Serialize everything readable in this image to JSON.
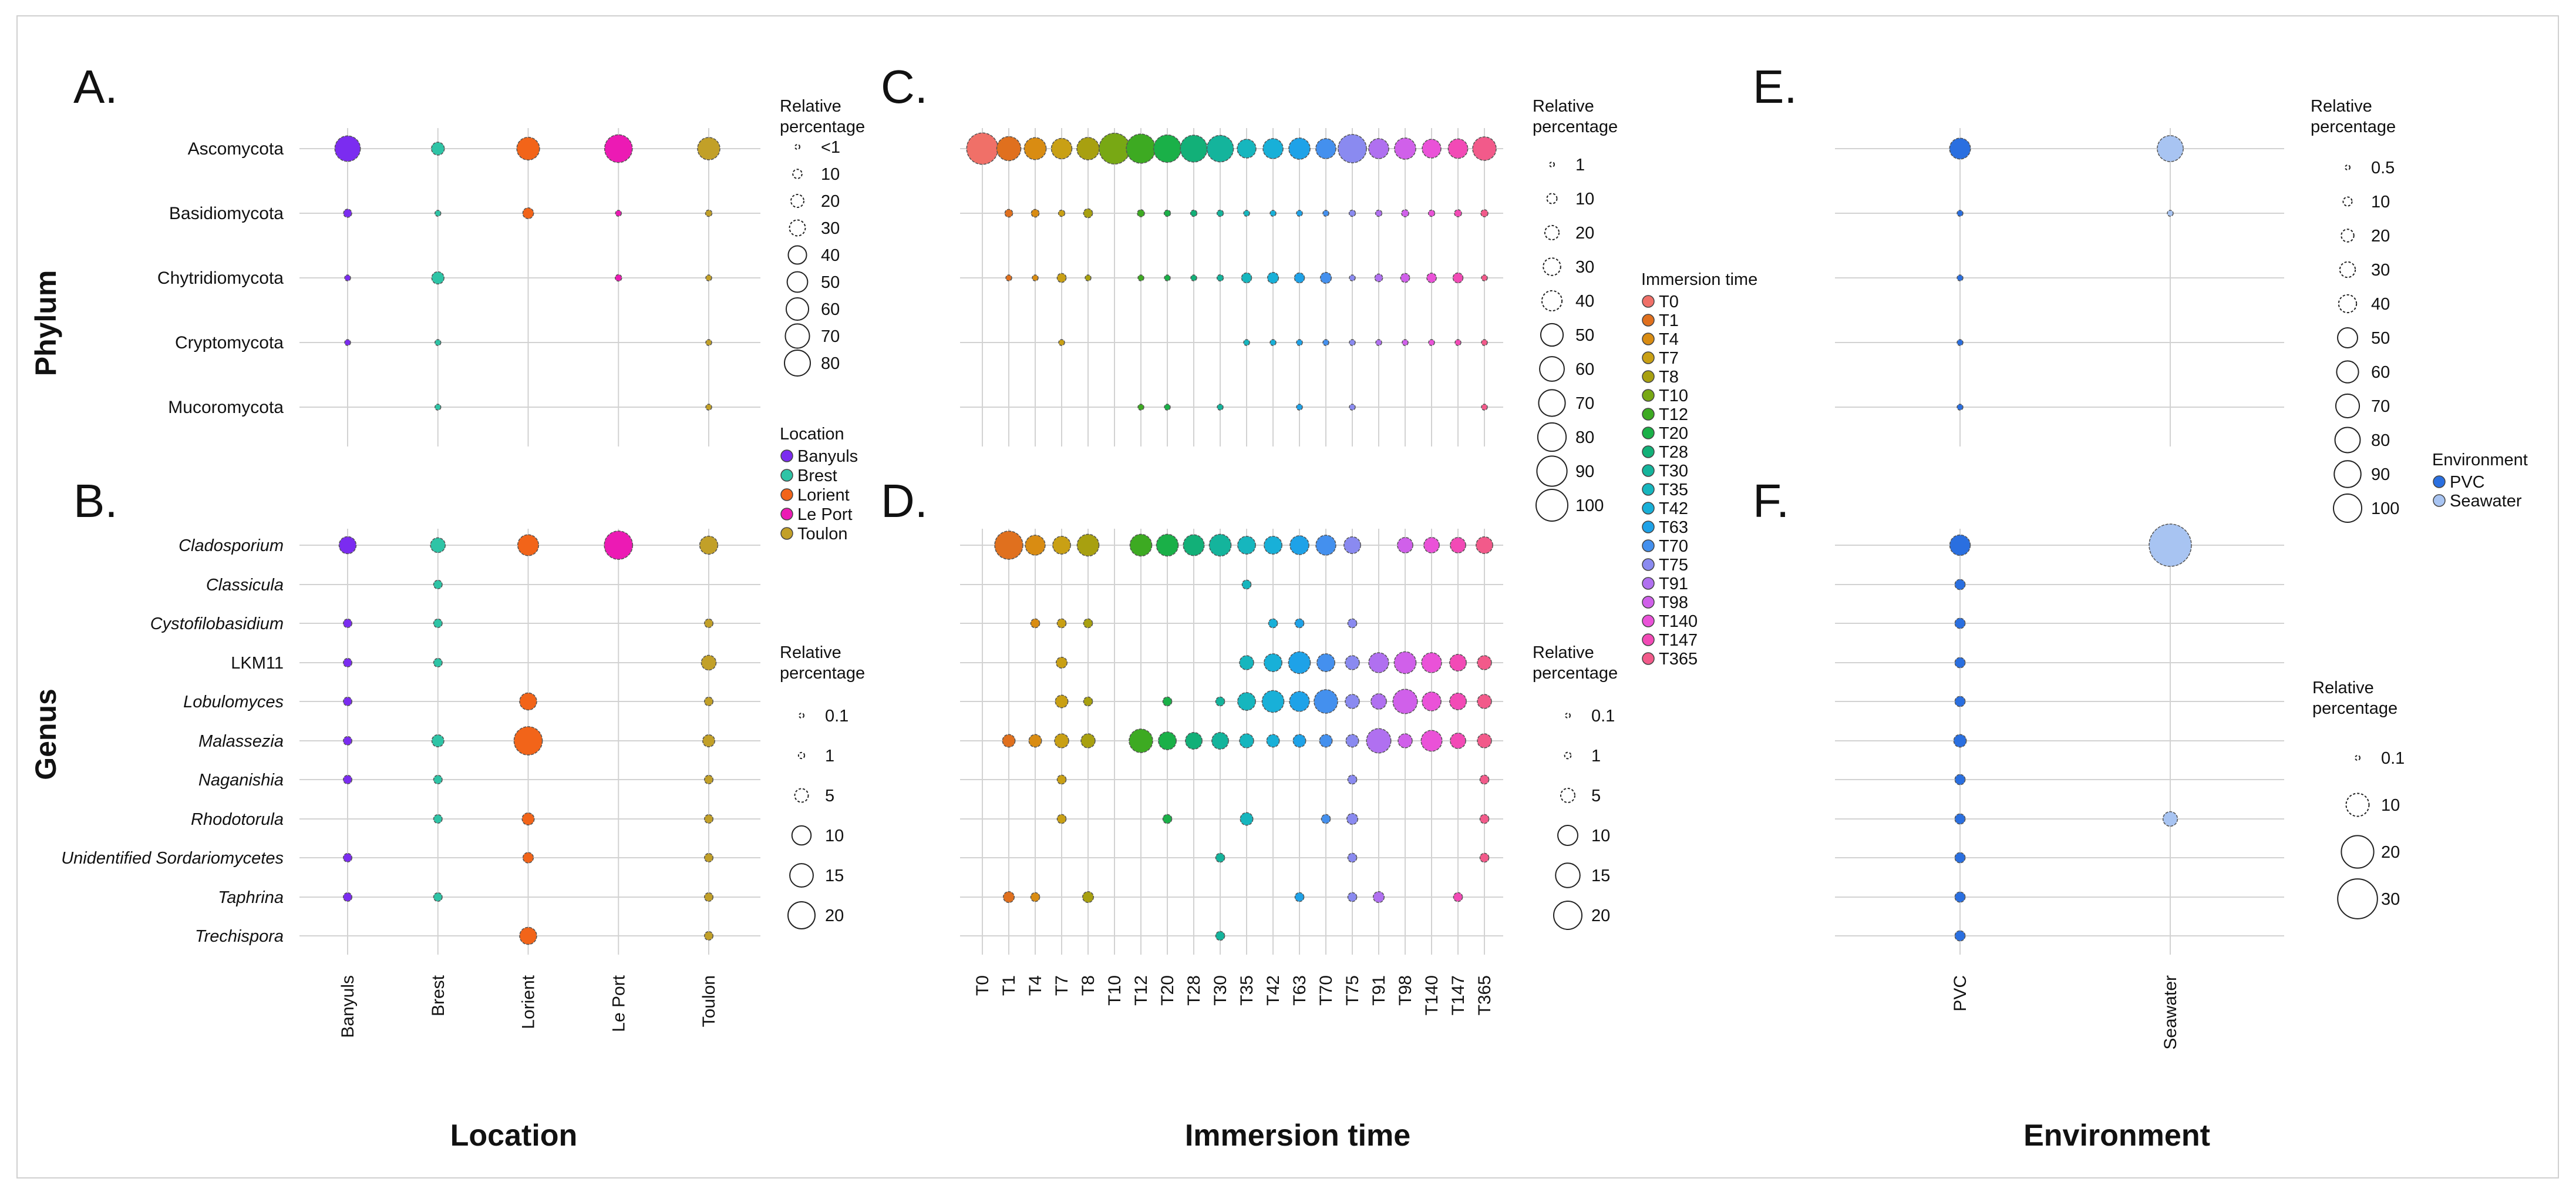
{
  "figure": {
    "side_labels": {
      "phylum": "Phylum",
      "genus": "Genus"
    },
    "bottom_titles": {
      "location": "Location",
      "immersion": "Immersion time",
      "environment": "Environment"
    },
    "panel_letters": {
      "A": "A.",
      "B": "B.",
      "C": "C.",
      "D": "D.",
      "E": "E.",
      "F": "F."
    },
    "size_legend_title": [
      "Relative",
      "percentage"
    ],
    "color_legend_titles": {
      "location": "Location",
      "immersion": "Immersion time",
      "environment": "Environment"
    }
  },
  "chart_data": [
    {
      "panel": "A",
      "type": "scatter",
      "title": "A.",
      "xlabel": "Location",
      "ylabel": "Phylum",
      "categories": [
        "Banyuls",
        "Brest",
        "Lorient",
        "Le Port",
        "Toulon"
      ],
      "rows": [
        "Ascomycota",
        "Basidiomycota",
        "Chytridiomycota",
        "Cryptomycota",
        "Mucoromycota"
      ],
      "values": [
        [
          78,
          20,
          62,
          92,
          60
        ],
        [
          8,
          4,
          14,
          2,
          5
        ],
        [
          3,
          18,
          0,
          5,
          3
        ],
        [
          2,
          2,
          0,
          0,
          2
        ],
        [
          0,
          1,
          0,
          0,
          1
        ]
      ],
      "size_legend": {
        "labels": [
          "<1",
          "10",
          "20",
          "30",
          "40",
          "50",
          "60",
          "70",
          "80"
        ],
        "values": [
          1,
          10,
          20,
          30,
          40,
          50,
          60,
          70,
          80
        ]
      }
    },
    {
      "panel": "B",
      "type": "scatter",
      "title": "B.",
      "xlabel": "Location",
      "ylabel": "Genus",
      "categories": [
        "Banyuls",
        "Brest",
        "Lorient",
        "Le Port",
        "Toulon"
      ],
      "rows": [
        "Cladosporium",
        "Classicula",
        "Cystofilobasidium",
        "LKM11",
        "Lobulomyces",
        "Malassezia",
        "Naganishia",
        "Rhodotorula",
        "Unidentified Sordariomycetes",
        "Taphrina",
        "Trechispora"
      ],
      "italic_rows": [
        "Cladosporium",
        "Classicula",
        "Cystofilobasidium",
        "Lobulomyces",
        "Malassezia",
        "Naganishia",
        "Rhodotorula",
        "Unidentified Sordariomycetes",
        "Taphrina",
        "Trechispora"
      ],
      "values": [
        [
          8,
          6,
          12,
          22,
          9
        ],
        [
          0,
          2,
          0,
          0,
          0
        ],
        [
          2,
          2,
          0,
          0,
          2
        ],
        [
          2,
          2,
          0,
          0,
          6
        ],
        [
          2,
          0,
          8,
          0,
          2
        ],
        [
          2,
          4,
          22,
          0,
          4
        ],
        [
          2,
          2,
          0,
          0,
          2
        ],
        [
          0,
          2,
          4,
          0,
          2
        ],
        [
          2,
          0,
          3,
          0,
          2
        ],
        [
          2,
          2,
          0,
          0,
          2
        ],
        [
          0,
          0,
          8,
          0,
          2
        ]
      ],
      "size_legend": {
        "labels": [
          "0.1",
          "1",
          "5",
          "10",
          "15",
          "20"
        ],
        "values": [
          0.1,
          1,
          5,
          10,
          15,
          20
        ]
      }
    },
    {
      "panel": "C",
      "type": "scatter",
      "title": "C.",
      "xlabel": "Immersion time",
      "ylabel": "Phylum",
      "categories": [
        "T0",
        "T1",
        "T4",
        "T7",
        "T8",
        "T10",
        "T12",
        "T20",
        "T28",
        "T30",
        "T35",
        "T42",
        "T63",
        "T70",
        "T75",
        "T91",
        "T98",
        "T140",
        "T147",
        "T365"
      ],
      "rows": [
        "Ascomycota",
        "Basidiomycota",
        "Chytridiomycota",
        "Cryptomycota",
        "Mucoromycota"
      ],
      "values": [
        [
          98,
          58,
          48,
          42,
          50,
          95,
          85,
          75,
          72,
          70,
          35,
          40,
          45,
          40,
          80,
          40,
          45,
          35,
          38,
          55
        ],
        [
          0,
          6,
          6,
          4,
          8,
          0,
          5,
          4,
          4,
          4,
          3,
          3,
          3,
          3,
          4,
          4,
          5,
          4,
          5,
          5
        ],
        [
          0,
          2,
          2,
          8,
          2,
          0,
          2,
          2,
          3,
          4,
          10,
          12,
          10,
          12,
          2,
          6,
          8,
          9,
          10,
          3
        ],
        [
          0,
          0,
          0,
          2,
          0,
          0,
          0,
          0,
          0,
          0,
          2,
          3,
          2,
          3,
          2,
          2,
          2,
          2,
          2,
          2
        ],
        [
          0,
          0,
          0,
          0,
          0,
          0,
          2,
          2,
          0,
          2,
          0,
          0,
          2,
          0,
          2,
          0,
          0,
          0,
          0,
          2
        ]
      ],
      "size_legend": {
        "labels": [
          "1",
          "10",
          "20",
          "30",
          "40",
          "50",
          "60",
          "70",
          "80",
          "90",
          "100"
        ],
        "values": [
          1,
          10,
          20,
          30,
          40,
          50,
          60,
          70,
          80,
          90,
          100
        ]
      }
    },
    {
      "panel": "D",
      "type": "scatter",
      "title": "D.",
      "xlabel": "Immersion time",
      "ylabel": "Genus",
      "categories": [
        "T0",
        "T1",
        "T4",
        "T7",
        "T8",
        "T10",
        "T12",
        "T20",
        "T28",
        "T30",
        "T35",
        "T42",
        "T63",
        "T70",
        "T75",
        "T91",
        "T98",
        "T140",
        "T147",
        "T365"
      ],
      "rows": [
        "Cladosporium",
        "Classicula",
        "Cystofilobasidium",
        "LKM11",
        "Lobulomyces",
        "Malassezia",
        "Naganishia",
        "Rhodotorula",
        "Unidentified Sordariomycetes",
        "Taphrina",
        "Trechispora"
      ],
      "values": [
        [
          0,
          20,
          10,
          8,
          12,
          0,
          12,
          12,
          11,
          12,
          8,
          8,
          9,
          10,
          7,
          0,
          6,
          6,
          6,
          7
        ],
        [
          0,
          0,
          0,
          0,
          0,
          0,
          0,
          0,
          0,
          0,
          2,
          0,
          0,
          0,
          0,
          0,
          0,
          0,
          0,
          0
        ],
        [
          0,
          0,
          2,
          2,
          2,
          0,
          0,
          0,
          0,
          0,
          0,
          2,
          2,
          0,
          2,
          0,
          0,
          0,
          0,
          0
        ],
        [
          0,
          0,
          0,
          3,
          0,
          0,
          0,
          0,
          0,
          0,
          5,
          8,
          12,
          8,
          5,
          10,
          12,
          10,
          7,
          5
        ],
        [
          0,
          0,
          0,
          4,
          2,
          0,
          0,
          2,
          0,
          2,
          8,
          12,
          10,
          14,
          5,
          6,
          15,
          9,
          7,
          5
        ],
        [
          0,
          4,
          4,
          5,
          5,
          0,
          14,
          8,
          7,
          7,
          5,
          4,
          4,
          4,
          4,
          15,
          5,
          11,
          6,
          5
        ],
        [
          0,
          0,
          0,
          2,
          0,
          0,
          0,
          0,
          0,
          0,
          0,
          0,
          0,
          0,
          2,
          0,
          0,
          0,
          0,
          2
        ],
        [
          0,
          0,
          0,
          2,
          0,
          0,
          0,
          2,
          0,
          0,
          4,
          0,
          0,
          2,
          3,
          0,
          0,
          0,
          0,
          2
        ],
        [
          0,
          0,
          0,
          0,
          0,
          0,
          0,
          0,
          0,
          2,
          0,
          0,
          0,
          0,
          2,
          0,
          0,
          0,
          0,
          2
        ],
        [
          0,
          3,
          2,
          0,
          3,
          0,
          0,
          0,
          0,
          0,
          0,
          0,
          2,
          0,
          2,
          3,
          0,
          0,
          2,
          0
        ],
        [
          0,
          0,
          0,
          0,
          0,
          0,
          0,
          0,
          0,
          2,
          0,
          0,
          0,
          0,
          0,
          0,
          0,
          0,
          0,
          0
        ]
      ],
      "size_legend": {
        "labels": [
          "0.1",
          "1",
          "5",
          "10",
          "15",
          "20"
        ],
        "values": [
          0.1,
          1,
          5,
          10,
          15,
          20
        ]
      }
    },
    {
      "panel": "E",
      "type": "scatter",
      "title": "E.",
      "xlabel": "Environment",
      "ylabel": "Phylum",
      "categories": [
        "PVC",
        "Seawater"
      ],
      "rows": [
        "Ascomycota",
        "Basidiomycota",
        "Chytridiomycota",
        "Cryptomycota",
        "Mucoromycota"
      ],
      "values": [
        [
          55,
          85
        ],
        [
          3,
          1
        ],
        [
          2,
          0
        ],
        [
          1,
          0
        ],
        [
          1,
          0
        ]
      ],
      "size_legend": {
        "labels": [
          "0.5",
          "10",
          "20",
          "30",
          "40",
          "50",
          "60",
          "70",
          "80",
          "90",
          "100"
        ],
        "values": [
          0.5,
          10,
          20,
          30,
          40,
          50,
          60,
          70,
          80,
          90,
          100
        ]
      }
    },
    {
      "panel": "F",
      "type": "scatter",
      "title": "F.",
      "xlabel": "Environment",
      "ylabel": "Genus",
      "categories": [
        "PVC",
        "Seawater"
      ],
      "rows": [
        "Cladosporium",
        "Classicula",
        "Cystofilobasidium",
        "LKM11",
        "Lobulomyces",
        "Malassezia",
        "Naganishia",
        "Rhodotorula",
        "Unidentified Sordariomycetes",
        "Taphrina",
        "Trechispora"
      ],
      "values": [
        [
          8,
          34
        ],
        [
          2,
          0
        ],
        [
          2,
          0
        ],
        [
          2,
          0
        ],
        [
          2,
          0
        ],
        [
          3,
          0
        ],
        [
          2,
          0
        ],
        [
          2,
          4
        ],
        [
          2,
          0
        ],
        [
          2,
          0
        ],
        [
          2,
          0
        ]
      ],
      "size_legend": {
        "labels": [
          "0.1",
          "10",
          "20",
          "30"
        ],
        "values": [
          0.1,
          10,
          20,
          30
        ]
      }
    }
  ],
  "colors": {
    "location": {
      "Banyuls": "#7b2cf0",
      "Brest": "#2ec4a6",
      "Lorient": "#f26419",
      "Le Port": "#ec1ab4",
      "Toulon": "#c2a028"
    },
    "immersion": {
      "T0": "#f07068",
      "T1": "#e0701e",
      "T4": "#d98c12",
      "T7": "#c9a014",
      "T8": "#a8a010",
      "T10": "#78a814",
      "T12": "#3daa22",
      "T20": "#1ab048",
      "T28": "#12b078",
      "T30": "#14b49c",
      "T35": "#16b6be",
      "T42": "#18b0d8",
      "T63": "#1ea2e8",
      "T70": "#4490ee",
      "T75": "#8a8af0",
      "T91": "#b070f0",
      "T98": "#d060ea",
      "T140": "#ea52d8",
      "T147": "#f24ab6",
      "T365": "#f25a8a"
    },
    "environment": {
      "PVC": "#2a6fe0",
      "Seawater": "#a8c4f2"
    }
  },
  "legends": {
    "location": [
      "Banyuls",
      "Brest",
      "Lorient",
      "Le Port",
      "Toulon"
    ],
    "immersion": [
      "T0",
      "T1",
      "T4",
      "T7",
      "T8",
      "T10",
      "T12",
      "T20",
      "T28",
      "T30",
      "T35",
      "T42",
      "T63",
      "T70",
      "T75",
      "T91",
      "T98",
      "T140",
      "T147",
      "T365"
    ],
    "environment": [
      "PVC",
      "Seawater"
    ]
  }
}
